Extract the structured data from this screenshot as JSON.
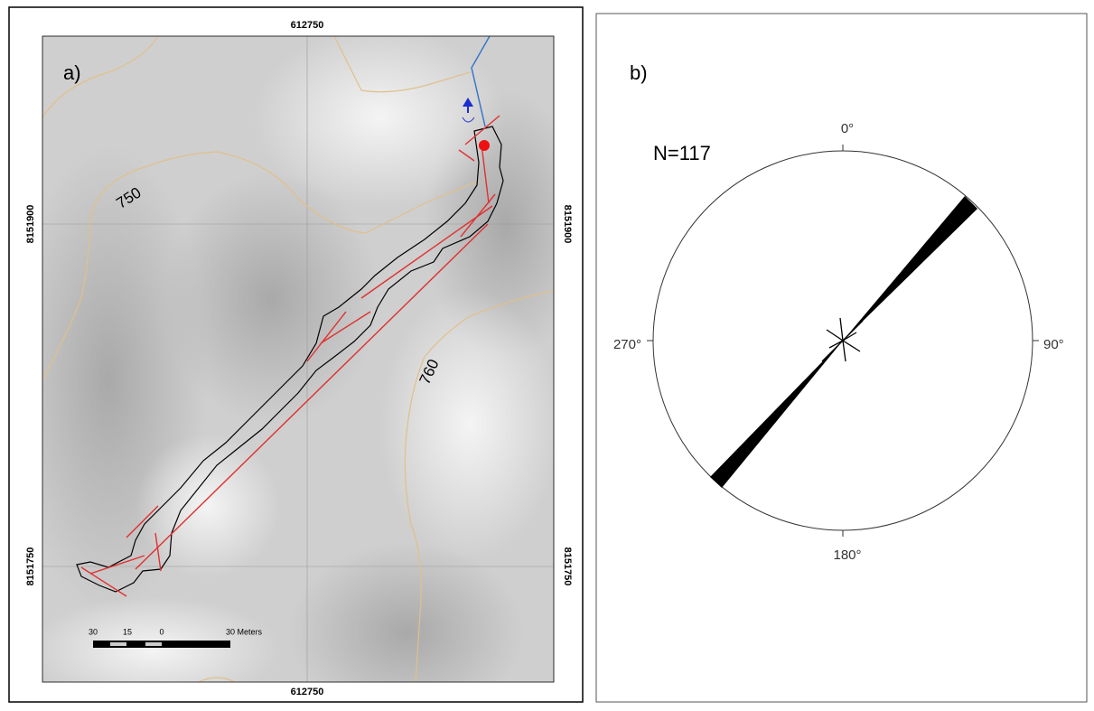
{
  "map": {
    "label": "a)",
    "easting": "612750",
    "northings": [
      "8151900",
      "8151750"
    ],
    "contours": [
      "750",
      "760"
    ],
    "scale_bar": [
      "30",
      "15",
      "0",
      "30 Meters"
    ]
  },
  "rose": {
    "label": "b)",
    "count": "N=117",
    "directions": [
      "0°",
      "90°",
      "180°",
      "270°"
    ]
  }
}
